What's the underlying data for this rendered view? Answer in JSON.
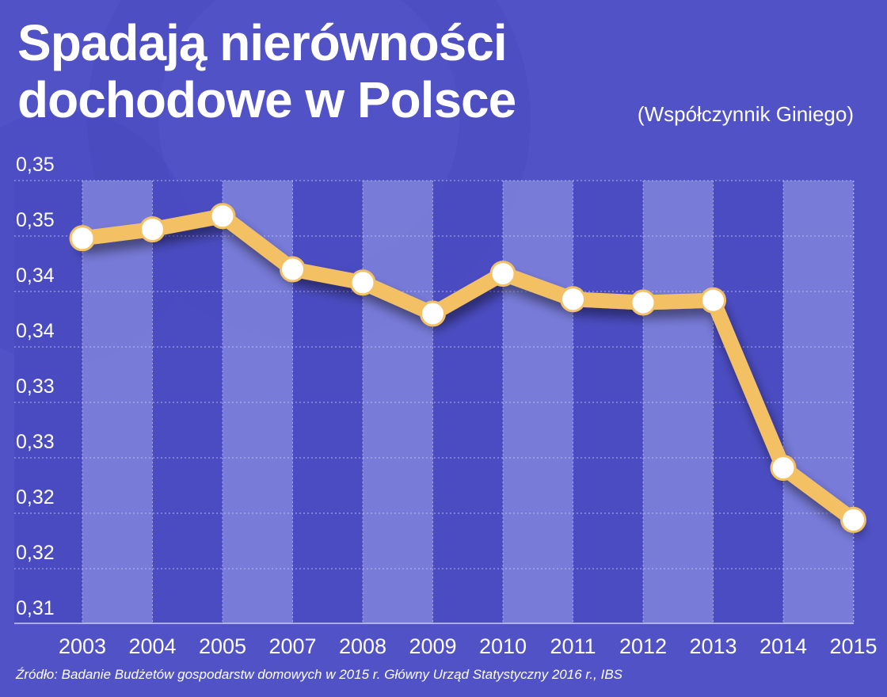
{
  "header": {
    "title": "Spadają nierówności dochodowe w Polsce",
    "subtitle": "(Współczynnik Giniego)"
  },
  "footer": {
    "source": "Źródło: Badanie Budżetów gospodarstw domowych w 2015 r. Główny Urząd Statystyczny 2016 r., IBS"
  },
  "colors": {
    "background": "#5152c6",
    "line": "#f3c064",
    "marker_fill": "#ffffff",
    "stripe_light": "#7c7fd9",
    "stripe_dark": "#4a4bc0"
  },
  "chart_data": {
    "type": "line",
    "title": "Spadają nierówności dochodowe w Polsce",
    "subtitle": "(Współczynnik Giniego)",
    "categories": [
      "2003",
      "2004",
      "2005",
      "2007",
      "2008",
      "2009",
      "2010",
      "2011",
      "2012",
      "2013",
      "2014",
      "2015"
    ],
    "series": [
      {
        "values": [
          0.3458,
          0.3466,
          0.3478,
          0.343,
          0.3418,
          0.339,
          0.3426,
          0.3403,
          0.34,
          0.3402,
          0.3251,
          0.3204
        ]
      }
    ],
    "ylim": [
      0.3125,
      0.3525
    ],
    "y_ticks": [
      {
        "value": 0.3125,
        "label": "0,31"
      },
      {
        "value": 0.3175,
        "label": "0,32"
      },
      {
        "value": 0.3225,
        "label": "0,32"
      },
      {
        "value": 0.3275,
        "label": "0,33"
      },
      {
        "value": 0.3325,
        "label": "0,33"
      },
      {
        "value": 0.3375,
        "label": "0,34"
      },
      {
        "value": 0.3425,
        "label": "0,34"
      },
      {
        "value": 0.3475,
        "label": "0,35"
      },
      {
        "value": 0.3525,
        "label": "0,35"
      }
    ],
    "grid": true,
    "legend": "none"
  }
}
